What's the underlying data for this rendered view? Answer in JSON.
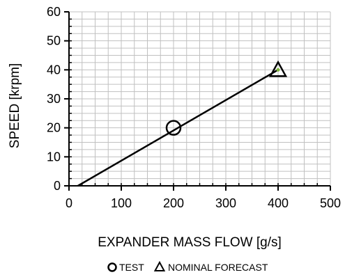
{
  "chart_data": {
    "type": "scatter",
    "title": "",
    "xlabel": "EXPANDER MASS FLOW [g/s]",
    "ylabel": "SPEED  [krpm]",
    "xlim": [
      0,
      500
    ],
    "ylim": [
      0,
      60
    ],
    "x_major_ticks": [
      0,
      100,
      200,
      300,
      400,
      500
    ],
    "y_major_ticks": [
      0,
      10,
      20,
      30,
      40,
      50,
      60
    ],
    "x_minor_step": 25,
    "y_minor_step": 2.5,
    "grid": true,
    "legend_position": "bottom",
    "series": [
      {
        "name": "TEST",
        "marker": "circle",
        "x": [
          200
        ],
        "y": [
          20
        ]
      },
      {
        "name": "NOMINAL FORECAST",
        "marker": "triangle",
        "x": [
          400
        ],
        "y": [
          40
        ]
      }
    ],
    "lines": [
      {
        "x": [
          17,
          400
        ],
        "y": [
          0,
          40
        ]
      }
    ],
    "colors": {
      "line": "#000000",
      "grid": "#c0c0c0",
      "axis": "#000000",
      "triangle_fill": "#7db33a"
    }
  }
}
